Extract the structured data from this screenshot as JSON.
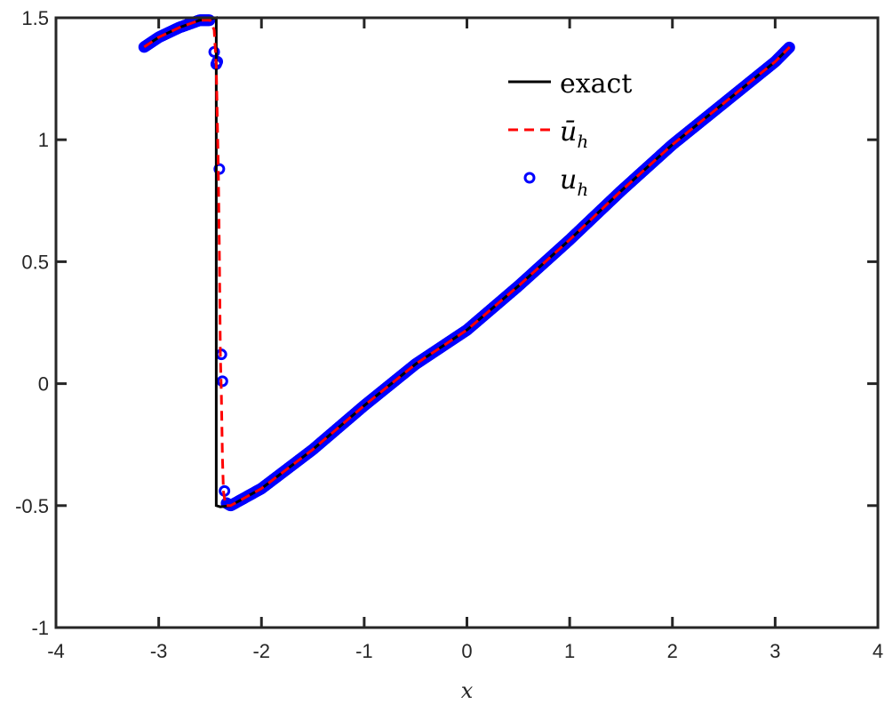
{
  "chart_data": {
    "type": "line",
    "xlabel": "x",
    "ylabel": "",
    "xlim": [
      -4,
      4
    ],
    "ylim": [
      -1,
      1.5
    ],
    "xticks": [
      -4,
      -3,
      -2,
      -1,
      0,
      1,
      2,
      3,
      4
    ],
    "yticks": [
      -1,
      -0.5,
      0,
      0.5,
      1,
      1.5
    ],
    "xtick_labels": [
      "-4",
      "-3",
      "-2",
      "-1",
      "0",
      "1",
      "2",
      "3",
      "4"
    ],
    "ytick_labels": [
      "-1",
      "-0.5",
      "0",
      "0.5",
      "1",
      "1.5"
    ],
    "grid": false,
    "legend_position": "top-right",
    "series": [
      {
        "name": "exact",
        "style": "solid",
        "color": "#000000",
        "x": [
          -3.1416,
          -3.0,
          -2.8,
          -2.6,
          -2.5,
          -2.44,
          -2.44,
          -2.4,
          -2.3,
          -2.0,
          -1.5,
          -1.0,
          -0.5,
          0.0,
          0.5,
          1.0,
          1.5,
          2.0,
          2.5,
          3.0,
          3.1416
        ],
        "y": [
          1.38,
          1.42,
          1.46,
          1.49,
          1.495,
          1.5,
          -0.5,
          -0.505,
          -0.5,
          -0.43,
          -0.27,
          -0.09,
          0.08,
          0.22,
          0.4,
          0.59,
          0.79,
          0.98,
          1.15,
          1.32,
          1.38
        ]
      },
      {
        "name": "ū_h",
        "style": "dashed",
        "color": "#ff0000",
        "x": [
          -3.1416,
          -3.0,
          -2.8,
          -2.6,
          -2.5,
          -2.46,
          -2.44,
          -2.42,
          -2.41,
          -2.4,
          -2.39,
          -2.38,
          -2.37,
          -2.35,
          -2.3,
          -2.0,
          -1.5,
          -1.0,
          -0.5,
          0.0,
          0.5,
          1.0,
          1.5,
          2.0,
          2.5,
          3.0,
          3.1416
        ],
        "y": [
          1.38,
          1.42,
          1.46,
          1.49,
          1.49,
          1.45,
          1.3,
          0.88,
          0.55,
          0.12,
          -0.05,
          -0.3,
          -0.44,
          -0.5,
          -0.5,
          -0.43,
          -0.27,
          -0.09,
          0.08,
          0.22,
          0.4,
          0.59,
          0.79,
          0.98,
          1.15,
          1.32,
          1.38
        ]
      },
      {
        "name": "u_h",
        "style": "markers",
        "color": "#0000ff",
        "marker": "circle",
        "x": [
          -3.1416,
          -3.0,
          -2.8,
          -2.6,
          -2.5,
          -2.46,
          -2.44,
          -2.43,
          -2.41,
          -2.39,
          -2.38,
          -2.36,
          -2.34,
          -2.3,
          -2.0,
          -1.5,
          -1.0,
          -0.5,
          0.0,
          0.5,
          1.0,
          1.5,
          2.0,
          2.5,
          3.0,
          3.1416
        ],
        "y": [
          1.38,
          1.42,
          1.46,
          1.49,
          1.49,
          1.36,
          1.31,
          1.32,
          0.88,
          0.12,
          0.01,
          -0.44,
          -0.49,
          -0.5,
          -0.43,
          -0.27,
          -0.09,
          0.08,
          0.22,
          0.4,
          0.59,
          0.79,
          0.98,
          1.15,
          1.32,
          1.38
        ]
      }
    ]
  }
}
